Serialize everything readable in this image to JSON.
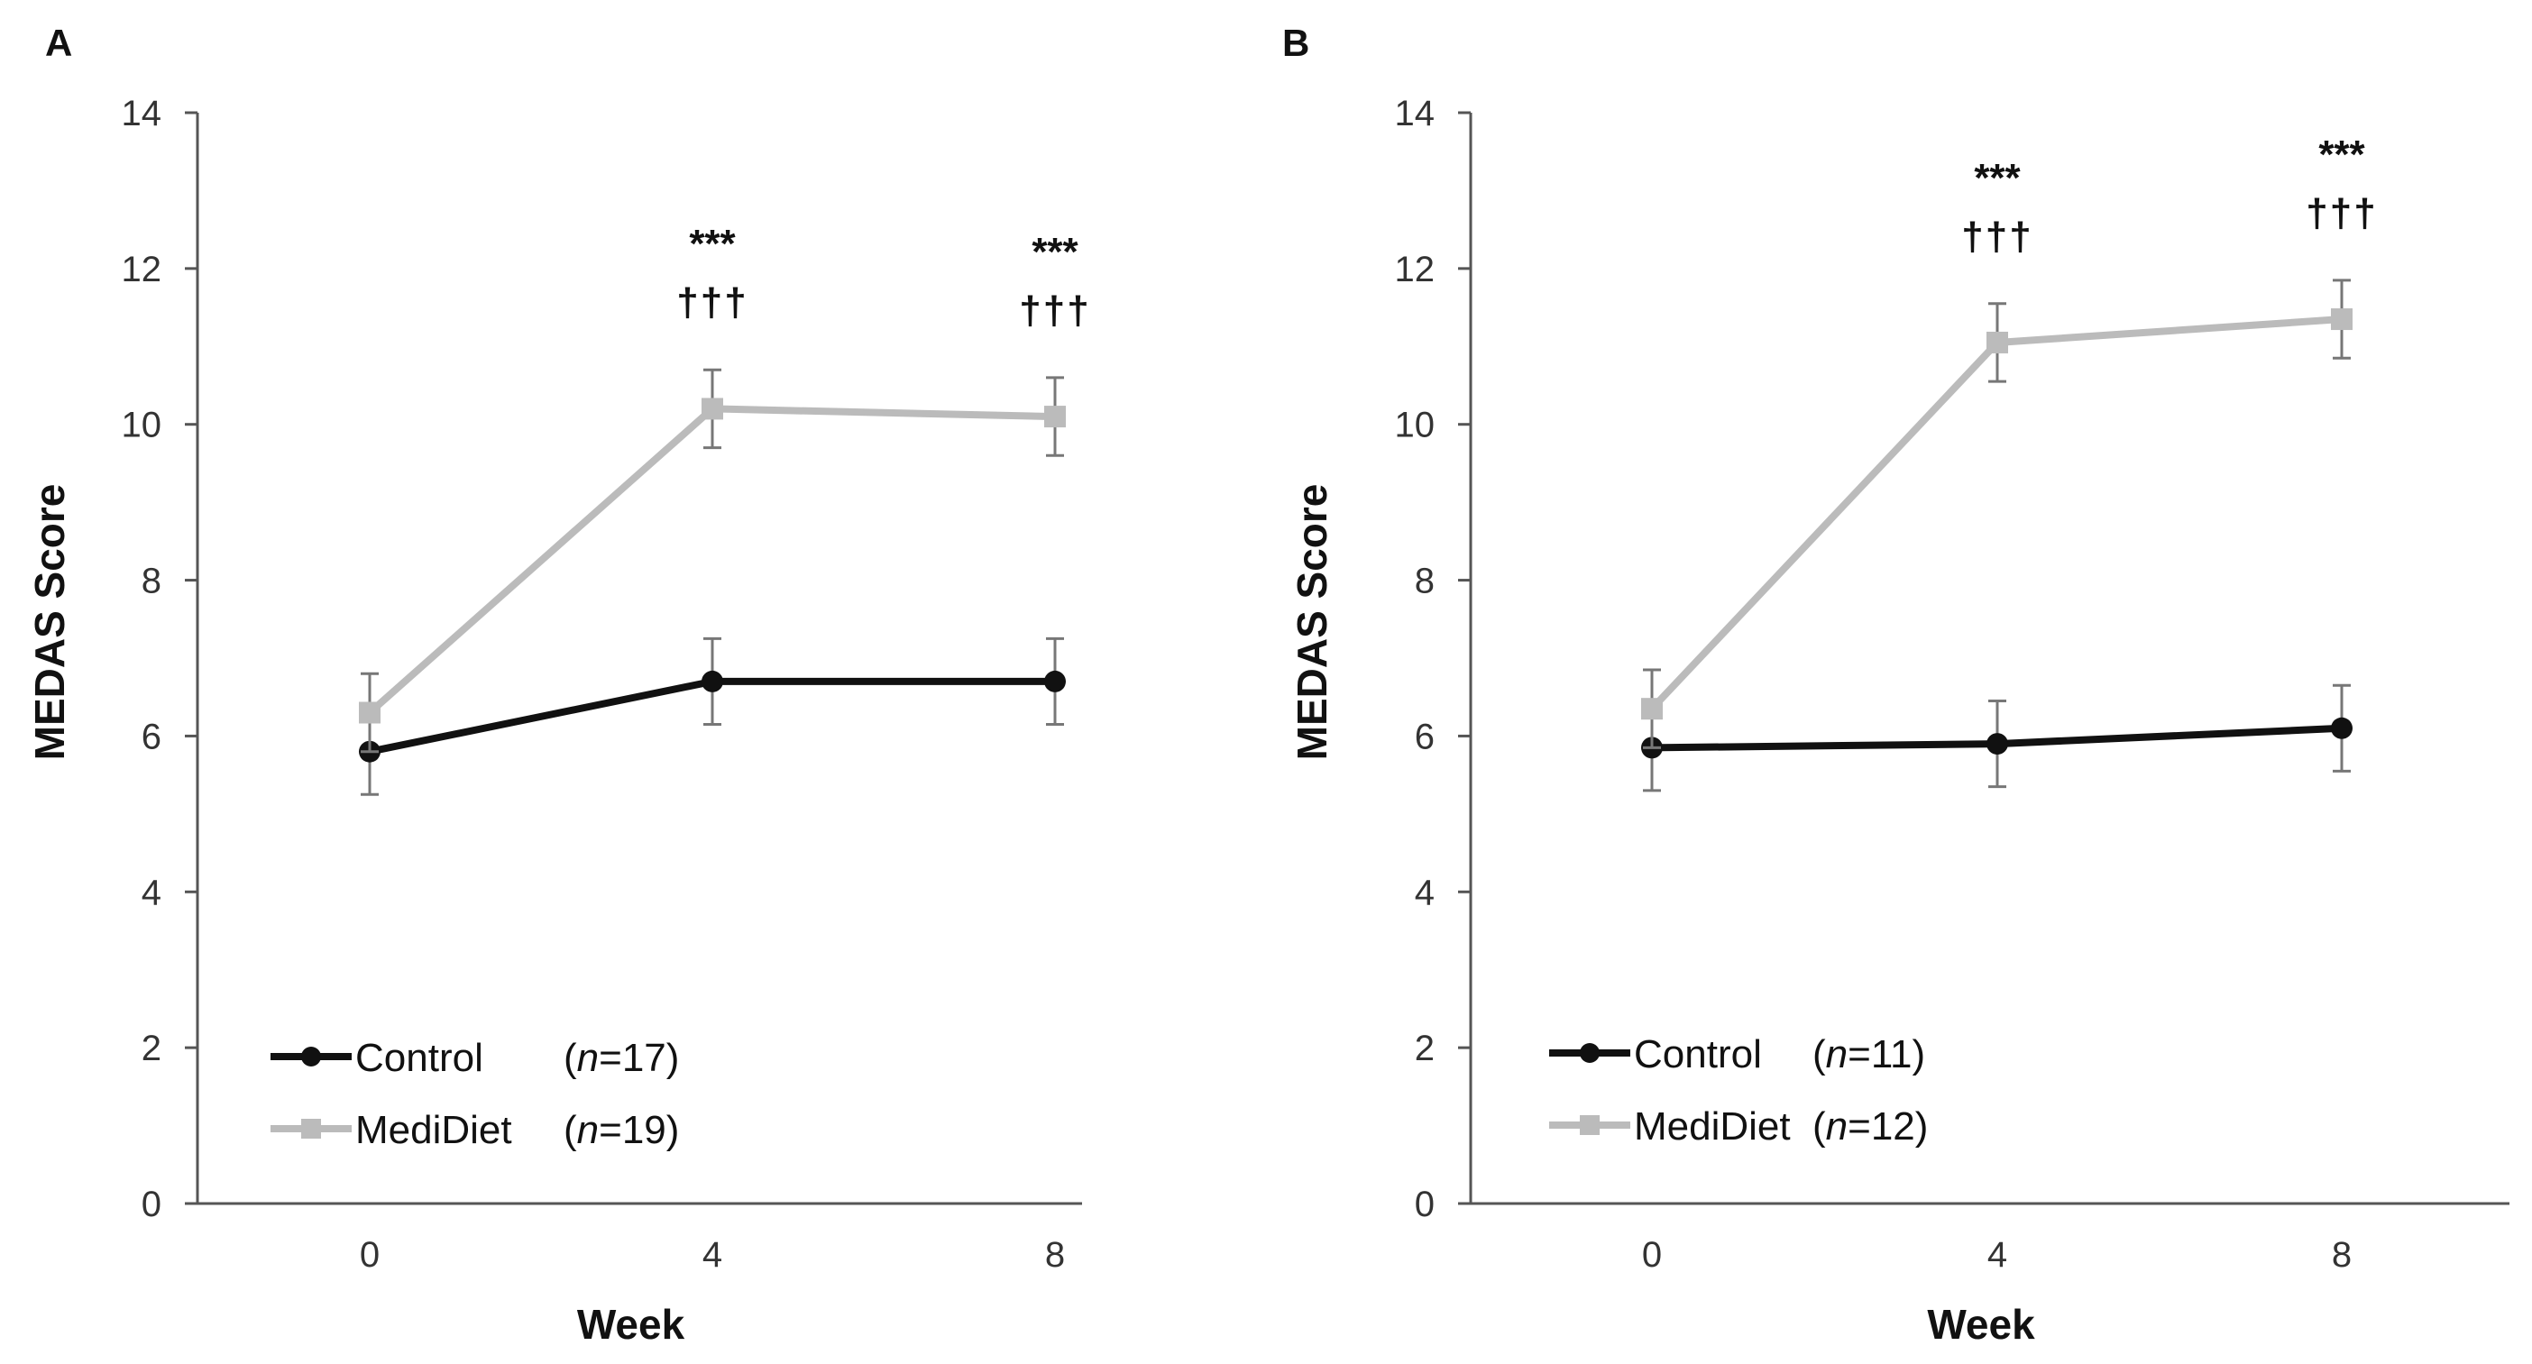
{
  "chart_data": [
    {
      "type": "line",
      "panel": "A",
      "xlabel": "Week",
      "ylabel": "MEDAS Score",
      "ylim": [
        0,
        14
      ],
      "yticks": [
        "0",
        "2",
        "4",
        "6",
        "8",
        "10",
        "12",
        "14"
      ],
      "x": [
        "0",
        "4",
        "8"
      ],
      "series": [
        {
          "name": "Control",
          "n_label": "n",
          "n_value": "=17)",
          "color": "#111111",
          "marker": "circle",
          "values": [
            5.8,
            6.7,
            6.7
          ],
          "errors": [
            0.55,
            0.55,
            0.55
          ]
        },
        {
          "name": "MediDiet",
          "n_label": "n",
          "n_value": "=19)",
          "color": "#bbbbbb",
          "marker": "square",
          "values": [
            6.3,
            10.2,
            10.1
          ],
          "errors": [
            0.5,
            0.5,
            0.5
          ]
        }
      ],
      "annotations": [
        {
          "x_index": 1,
          "line1": "***",
          "line2": "†††"
        },
        {
          "x_index": 2,
          "line1": "***",
          "line2": "†††"
        }
      ]
    },
    {
      "type": "line",
      "panel": "B",
      "xlabel": "Week",
      "ylabel": "MEDAS Score",
      "ylim": [
        0,
        14
      ],
      "yticks": [
        "0",
        "2",
        "4",
        "6",
        "8",
        "10",
        "12",
        "14"
      ],
      "x": [
        "0",
        "4",
        "8"
      ],
      "series": [
        {
          "name": "Control",
          "n_label": "n",
          "n_value": "=11)",
          "color": "#111111",
          "marker": "circle",
          "values": [
            5.85,
            5.9,
            6.1
          ],
          "errors": [
            0.55,
            0.55,
            0.55
          ]
        },
        {
          "name": "MediDiet",
          "n_label": "n",
          "n_value": "=12)",
          "color": "#bbbbbb",
          "marker": "square",
          "values": [
            6.35,
            11.05,
            11.35
          ],
          "errors": [
            0.5,
            0.5,
            0.5
          ]
        }
      ],
      "annotations": [
        {
          "x_index": 1,
          "line1": "***",
          "line2": "†††"
        },
        {
          "x_index": 2,
          "line1": "***",
          "line2": "†††"
        }
      ]
    }
  ]
}
